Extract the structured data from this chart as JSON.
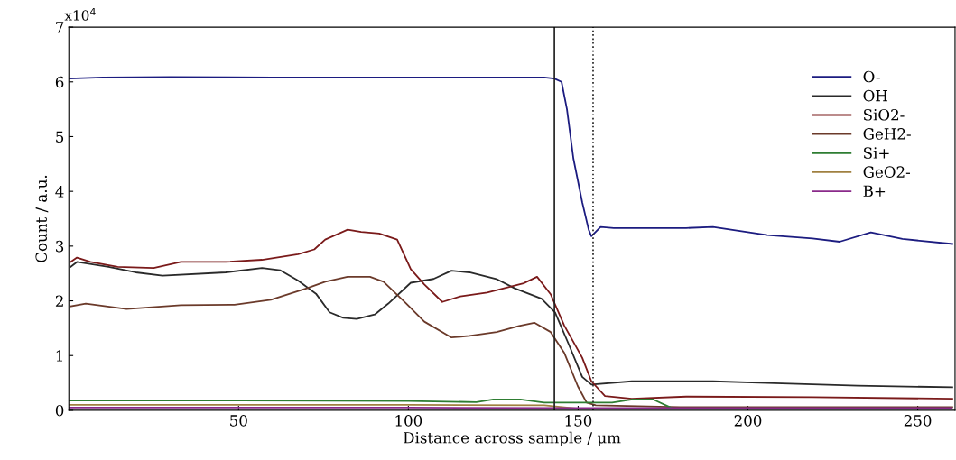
{
  "chart_data": {
    "type": "line",
    "xlabel": "Distance across sample / µm",
    "ylabel": "Count / a.u.",
    "annotations": [
      "x10$^{4}$"
    ],
    "xlim": [
      0,
      261
    ],
    "xticks": [
      50,
      100,
      150,
      200,
      250
    ],
    "ylim": [
      0,
      7
    ],
    "yticks": [
      0,
      1,
      2,
      3,
      4,
      5,
      6,
      7
    ],
    "grid": false,
    "legend": "top right",
    "line_style": "solid",
    "series": [
      {
        "name": "O-",
        "color": "#1c1c80",
        "x": [
          0,
          10,
          30,
          60,
          90,
          120,
          140,
          143,
          145.1,
          146.7,
          148.6,
          151.2,
          153.1,
          153.9,
          156.6,
          160.5,
          181.8,
          189.7,
          205.7,
          219,
          227,
          236.2,
          245.5,
          260.2
        ],
        "values": [
          6.06,
          6.08,
          6.09,
          6.08,
          6.08,
          6.08,
          6.08,
          6.06,
          6.0,
          5.5,
          4.6,
          3.8,
          3.3,
          3.18,
          3.35,
          3.33,
          3.33,
          3.35,
          3.2,
          3.14,
          3.08,
          3.25,
          3.13,
          3.04
        ]
      },
      {
        "name": "OH",
        "color": "#2a2a2a",
        "x": [
          0.5,
          2.4,
          11.7,
          19.7,
          27.6,
          46.2,
          56.9,
          62.2,
          67.5,
          72.8,
          76.8,
          80.8,
          84.8,
          90.1,
          94.1,
          100.7,
          107.4,
          112.7,
          118.0,
          125.9,
          131.3,
          139.2,
          143.2,
          147.2,
          151.2,
          153.9,
          165.8,
          189.7,
          205.7,
          232.3,
          260.2
        ],
        "values": [
          2.62,
          2.71,
          2.62,
          2.52,
          2.46,
          2.52,
          2.6,
          2.56,
          2.37,
          2.13,
          1.79,
          1.69,
          1.67,
          1.75,
          1.95,
          2.33,
          2.4,
          2.55,
          2.52,
          2.4,
          2.23,
          2.04,
          1.79,
          1.21,
          0.61,
          0.47,
          0.53,
          0.53,
          0.5,
          0.45,
          0.42
        ]
      },
      {
        "name": "SiO2-",
        "color": "#7a1a1a",
        "x": [
          0.5,
          2.4,
          6.4,
          14.4,
          25.0,
          33.0,
          46.2,
          56.9,
          67.5,
          72.3,
          75.5,
          82.1,
          86.1,
          91.4,
          96.7,
          100.7,
          104.7,
          110.0,
          115.3,
          123.2,
          133.9,
          137.9,
          141.9,
          145.9,
          151.2,
          153.9,
          157.9,
          165.8,
          181.8,
          219,
          260.2
        ],
        "values": [
          2.71,
          2.79,
          2.71,
          2.62,
          2.6,
          2.71,
          2.71,
          2.75,
          2.85,
          2.94,
          3.12,
          3.3,
          3.26,
          3.23,
          3.12,
          2.58,
          2.3,
          1.98,
          2.08,
          2.15,
          2.32,
          2.44,
          2.12,
          1.55,
          0.96,
          0.53,
          0.26,
          0.21,
          0.25,
          0.24,
          0.21
        ]
      },
      {
        "name": "GeH2-",
        "color": "#6b3a2a",
        "x": [
          0.5,
          5.0,
          17.0,
          33.0,
          48.8,
          59.5,
          70.1,
          75.5,
          82.1,
          88.7,
          92.7,
          99.4,
          104.7,
          112.7,
          118.0,
          126.0,
          132.6,
          137.1,
          141.9,
          145.9,
          149.9,
          152.5,
          155.2,
          180,
          260.2
        ],
        "values": [
          1.9,
          1.95,
          1.85,
          1.92,
          1.93,
          2.02,
          2.23,
          2.35,
          2.44,
          2.44,
          2.35,
          1.95,
          1.62,
          1.33,
          1.36,
          1.43,
          1.54,
          1.6,
          1.43,
          1.05,
          0.44,
          0.14,
          0.09,
          0.06,
          0.06
        ]
      },
      {
        "name": "Si+",
        "color": "#2e7d32",
        "x": [
          0,
          50,
          100,
          120,
          125,
          133,
          140,
          160,
          166,
          172,
          178,
          200,
          260
        ],
        "values": [
          0.18,
          0.18,
          0.17,
          0.15,
          0.2,
          0.2,
          0.14,
          0.14,
          0.2,
          0.2,
          0.03,
          0.03,
          0.03
        ]
      },
      {
        "name": "GeO2-",
        "color": "#a08040",
        "x": [
          0,
          50,
          100,
          140,
          150,
          200,
          260
        ],
        "values": [
          0.1,
          0.1,
          0.1,
          0.09,
          0.03,
          0.03,
          0.03
        ]
      },
      {
        "name": "B+",
        "color": "#8a2a8a",
        "x": [
          0,
          50,
          100,
          150,
          200,
          260
        ],
        "values": [
          0.05,
          0.05,
          0.05,
          0.04,
          0.04,
          0.04
        ]
      }
    ],
    "ref_lines": [
      {
        "axis": "x",
        "value": 143,
        "color": "#202020",
        "line_style": "solid"
      },
      {
        "axis": "x",
        "value": 154.4,
        "color": "#202020",
        "line_style": "dotted"
      }
    ]
  }
}
